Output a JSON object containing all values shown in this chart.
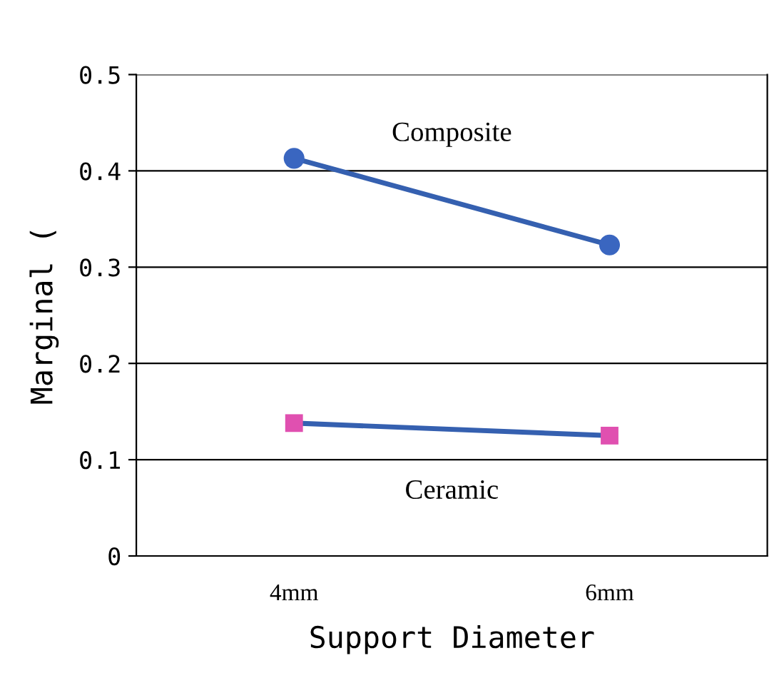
{
  "chart_data": {
    "type": "line",
    "xlabel": "Support Diameter",
    "ylabel": "Marginal (",
    "categories": [
      "4mm",
      "6mm"
    ],
    "series": [
      {
        "name": "Composite",
        "color": "#3560b0",
        "colors": [
          "#3a66c0",
          "#3a66c0"
        ],
        "marker": "circle",
        "values": [
          0.413,
          0.323
        ]
      },
      {
        "name": "Ceramic",
        "color": "#3560b0",
        "colors": [
          "#e050b0",
          "#e050b0"
        ],
        "marker": "square",
        "values": [
          0.138,
          0.125
        ]
      }
    ],
    "ylim": [
      0,
      0.5
    ],
    "yticks": [
      0,
      0.1,
      0.2,
      0.3,
      0.4,
      0.5
    ],
    "grid": "y",
    "legend": false
  }
}
